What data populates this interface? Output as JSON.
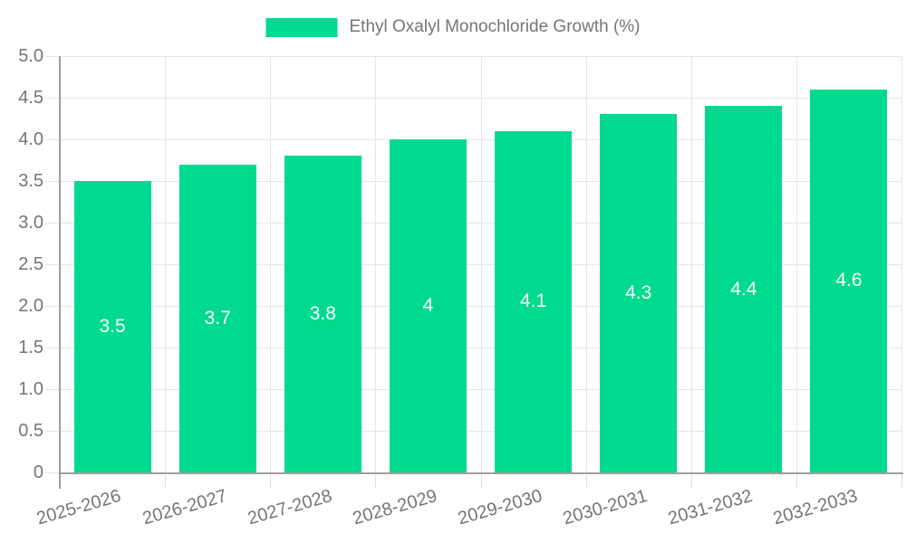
{
  "chart_data": {
    "type": "bar",
    "title": "Ethyl Oxalyl Monochloride Growth (%)",
    "legend": {
      "position": "top",
      "label": "Ethyl Oxalyl Monochloride Growth (%)"
    },
    "categories": [
      "2025-2026",
      "2026-2027",
      "2027-2028",
      "2028-2029",
      "2029-2030",
      "2030-2031",
      "2031-2032",
      "2032-2033"
    ],
    "series": [
      {
        "name": "Ethyl Oxalyl Monochloride Growth (%)",
        "values": [
          3.5,
          3.7,
          3.8,
          4,
          4.1,
          4.3,
          4.4,
          4.6
        ],
        "value_labels": [
          "3.5",
          "3.7",
          "3.8",
          "4",
          "4.1",
          "4.3",
          "4.4",
          "4.6"
        ]
      }
    ],
    "xlabel": "",
    "ylabel": "",
    "ylim": [
      0,
      5
    ],
    "ytick_step": 0.5,
    "ytick_labels": [
      "0",
      "0.5",
      "1.0",
      "1.5",
      "2.0",
      "2.5",
      "3.0",
      "3.5",
      "4.0",
      "4.5",
      "5.0"
    ],
    "grid": true,
    "colors": {
      "bar": "#00DA8E",
      "axis": "#9e9e9e",
      "gridline": "#e6e6e6",
      "tick_text": "#757575",
      "value_text": "#ffffff"
    }
  }
}
